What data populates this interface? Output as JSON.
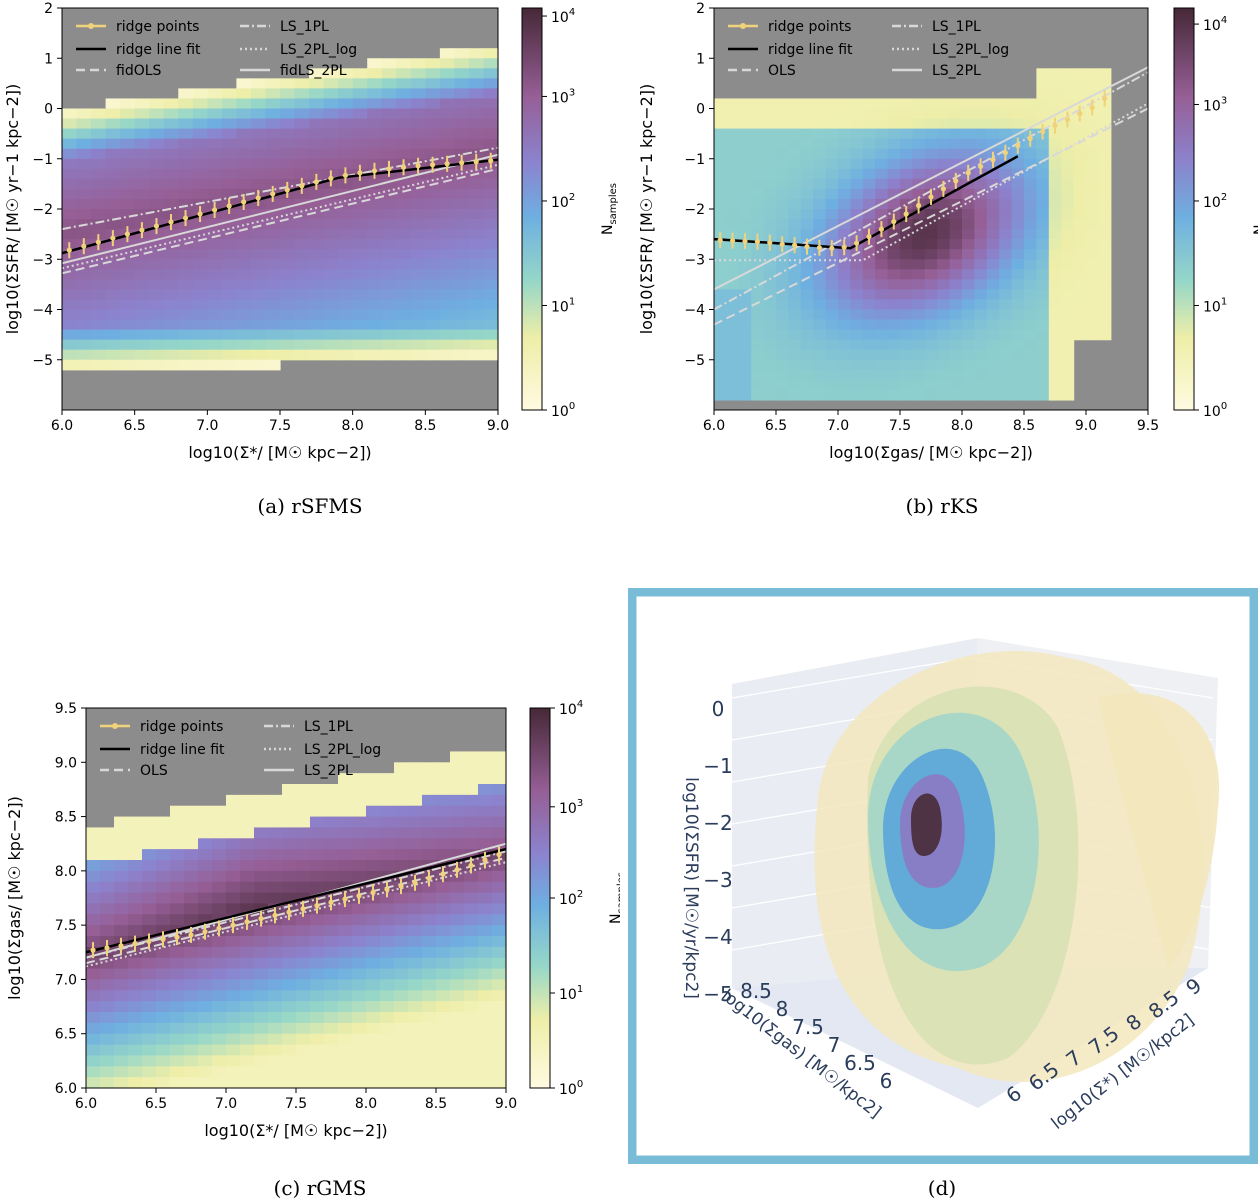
{
  "colorbar_label": "N",
  "colorbar_sub": "samples",
  "colorbar_ticks": [
    "10",
    "10",
    "10",
    "10",
    "10"
  ],
  "colorbar_exps": [
    "4",
    "3",
    "2",
    "1",
    "0"
  ],
  "legend_labels": {
    "ridge_points": "ridge points",
    "ridge_line": "ridge line fit",
    "ls1": "LS_1PL",
    "ls2log": "LS_2PL_log",
    "ls2": "LS_2PL",
    "fidols": "fidOLS",
    "fidls2": "fidLS_2PL",
    "ols": "OLS"
  },
  "captions": {
    "a": "(a) rSFMS",
    "b": "(b) rKS",
    "c": "(c) rGMS",
    "d": "(d)"
  },
  "chart_data": [
    {
      "id": "a",
      "type": "heatmap",
      "title": "rSFMS",
      "xlabel": "log10(Σ*/ [M☉ kpc−2])",
      "ylabel": "log10(ΣSFR/ [M☉ yr−1 kpc−2])",
      "xlim": [
        6.0,
        9.0
      ],
      "ylim": [
        -6.0,
        2.0
      ],
      "xticks": [
        "6.0",
        "6.5",
        "7.0",
        "7.5",
        "8.0",
        "8.5",
        "9.0"
      ],
      "yticks": [
        "2",
        "1",
        "0",
        "−1",
        "−2",
        "−3",
        "−4",
        "−5"
      ],
      "ridge_points": {
        "x": [
          6.05,
          6.15,
          6.25,
          6.35,
          6.45,
          6.55,
          6.65,
          6.75,
          6.85,
          6.95,
          7.05,
          7.15,
          7.25,
          7.35,
          7.45,
          7.55,
          7.65,
          7.75,
          7.85,
          7.95,
          8.05,
          8.15,
          8.25,
          8.35,
          8.45,
          8.55,
          8.65,
          8.75,
          8.85,
          8.95
        ],
        "y": [
          -2.82,
          -2.74,
          -2.66,
          -2.58,
          -2.5,
          -2.42,
          -2.34,
          -2.26,
          -2.18,
          -2.1,
          -2.02,
          -1.94,
          -1.86,
          -1.78,
          -1.7,
          -1.62,
          -1.54,
          -1.46,
          -1.39,
          -1.33,
          -1.28,
          -1.24,
          -1.2,
          -1.17,
          -1.14,
          -1.12,
          -1.1,
          -1.08,
          -1.06,
          -1.04
        ]
      },
      "ridge_line": {
        "x": [
          6.0,
          7.9,
          9.0
        ],
        "y": [
          -2.88,
          -1.38,
          -1.02
        ]
      },
      "lines": [
        {
          "name": "LS_1PL",
          "style": "dashdot",
          "x": [
            6.0,
            9.0
          ],
          "y": [
            -2.4,
            -0.78
          ]
        },
        {
          "name": "LS_2PL_log",
          "style": "dotted",
          "x": [
            6.0,
            9.0
          ],
          "y": [
            -3.18,
            -1.12
          ]
        },
        {
          "name": "fidLS_2PL",
          "style": "solid",
          "x": [
            6.0,
            9.0
          ],
          "y": [
            -3.08,
            -0.92
          ]
        },
        {
          "name": "fidOLS",
          "style": "dashed",
          "x": [
            6.0,
            9.0
          ],
          "y": [
            -3.28,
            -1.2
          ]
        }
      ]
    },
    {
      "id": "b",
      "type": "heatmap",
      "title": "rKS",
      "xlabel": "log10(Σgas/ [M☉ kpc−2])",
      "ylabel": "log10(ΣSFR/ [M☉ yr−1 kpc−2])",
      "xlim": [
        6.0,
        9.5
      ],
      "ylim": [
        -6.0,
        2.0
      ],
      "xticks": [
        "6.0",
        "6.5",
        "7.0",
        "7.5",
        "8.0",
        "8.5",
        "9.0",
        "9.5"
      ],
      "yticks": [
        "2",
        "1",
        "0",
        "−1",
        "−2",
        "−3",
        "−4",
        "−5"
      ],
      "ridge_points": {
        "x": [
          6.05,
          6.15,
          6.25,
          6.35,
          6.45,
          6.55,
          6.65,
          6.75,
          6.85,
          6.95,
          7.05,
          7.15,
          7.25,
          7.35,
          7.45,
          7.55,
          7.65,
          7.75,
          7.85,
          7.95,
          8.05,
          8.15,
          8.25,
          8.35,
          8.45,
          8.55,
          8.65,
          8.75,
          8.85,
          8.95,
          9.05,
          9.15
        ],
        "y": [
          -2.62,
          -2.63,
          -2.64,
          -2.65,
          -2.67,
          -2.7,
          -2.72,
          -2.75,
          -2.77,
          -2.78,
          -2.76,
          -2.68,
          -2.55,
          -2.4,
          -2.25,
          -2.1,
          -1.93,
          -1.76,
          -1.6,
          -1.44,
          -1.28,
          -1.15,
          -1.02,
          -0.88,
          -0.74,
          -0.6,
          -0.46,
          -0.34,
          -0.22,
          -0.1,
          0.02,
          0.2
        ]
      },
      "ridge_line": {
        "x": [
          6.0,
          7.1,
          8.45
        ],
        "y": [
          -2.6,
          -2.78,
          -0.95
        ]
      },
      "lines": [
        {
          "name": "LS_1PL",
          "style": "dashdot",
          "x": [
            6.0,
            9.5
          ],
          "y": [
            -4.0,
            0.72
          ]
        },
        {
          "name": "LS_2PL_log",
          "style": "dotted",
          "x": [
            6.0,
            7.2,
            9.5
          ],
          "y": [
            -3.02,
            -3.02,
            0.1
          ]
        },
        {
          "name": "LS_2PL",
          "style": "solid",
          "x": [
            6.0,
            9.5
          ],
          "y": [
            -3.6,
            0.82
          ]
        },
        {
          "name": "OLS",
          "style": "dashed",
          "x": [
            6.0,
            9.5
          ],
          "y": [
            -4.3,
            0.0
          ]
        }
      ]
    },
    {
      "id": "c",
      "type": "heatmap",
      "title": "rGMS",
      "xlabel": "log10(Σ*/ [M☉ kpc−2])",
      "ylabel": "log10(Σgas/ [M☉ kpc−2])",
      "xlim": [
        6.0,
        9.0
      ],
      "ylim": [
        6.0,
        9.5
      ],
      "xticks": [
        "6.0",
        "6.5",
        "7.0",
        "7.5",
        "8.0",
        "8.5",
        "9.0"
      ],
      "yticks": [
        "9.5",
        "9.0",
        "8.5",
        "8.0",
        "7.5",
        "7.0",
        "6.5",
        "6.0"
      ],
      "ridge_points": {
        "x": [
          6.05,
          6.15,
          6.25,
          6.35,
          6.45,
          6.55,
          6.65,
          6.75,
          6.85,
          6.95,
          7.05,
          7.15,
          7.25,
          7.35,
          7.45,
          7.55,
          7.65,
          7.75,
          7.85,
          7.95,
          8.05,
          8.15,
          8.25,
          8.35,
          8.45,
          8.55,
          8.65,
          8.75,
          8.85,
          8.95
        ],
        "y": [
          7.27,
          7.29,
          7.31,
          7.33,
          7.35,
          7.37,
          7.39,
          7.41,
          7.44,
          7.47,
          7.5,
          7.53,
          7.56,
          7.59,
          7.62,
          7.65,
          7.68,
          7.71,
          7.74,
          7.77,
          7.8,
          7.83,
          7.86,
          7.89,
          7.93,
          7.97,
          8.01,
          8.05,
          8.1,
          8.15
        ]
      },
      "ridge_line": {
        "x": [
          6.0,
          9.0
        ],
        "y": [
          7.25,
          8.2
        ]
      },
      "lines": [
        {
          "name": "LS_1PL",
          "style": "dashdot",
          "x": [
            6.0,
            9.0
          ],
          "y": [
            7.2,
            8.18
          ]
        },
        {
          "name": "LS_2PL_log",
          "style": "dotted",
          "x": [
            6.0,
            9.0
          ],
          "y": [
            7.12,
            8.08
          ]
        },
        {
          "name": "LS_2PL",
          "style": "solid",
          "x": [
            6.0,
            9.0
          ],
          "y": [
            7.2,
            8.25
          ]
        },
        {
          "name": "OLS",
          "style": "dashed",
          "x": [
            6.0,
            9.0
          ],
          "y": [
            7.15,
            8.12
          ]
        }
      ]
    },
    {
      "id": "d",
      "type": "3d-contour",
      "zlabel": "log10(ΣSFR) [M☉/yr/kpc2]",
      "ylabel": "log10(Σgas) [M☉/kpc2]",
      "xlabel": "log10(Σ*) [M☉/kpc2]",
      "zticks": [
        "0",
        "−1",
        "−2",
        "−3",
        "−4",
        "−5"
      ],
      "gas_ticks": [
        "8.5",
        "8",
        "7.5",
        "7",
        "6.5",
        "6"
      ],
      "star_ticks": [
        "6",
        "6.5",
        "7",
        "7.5",
        "8",
        "8.5",
        "9"
      ],
      "levels": [
        "#f3e7bd",
        "#d9e2b4",
        "#a7d6c8",
        "#5ea9d9",
        "#8a7bc4",
        "#4b2f3e"
      ]
    }
  ]
}
